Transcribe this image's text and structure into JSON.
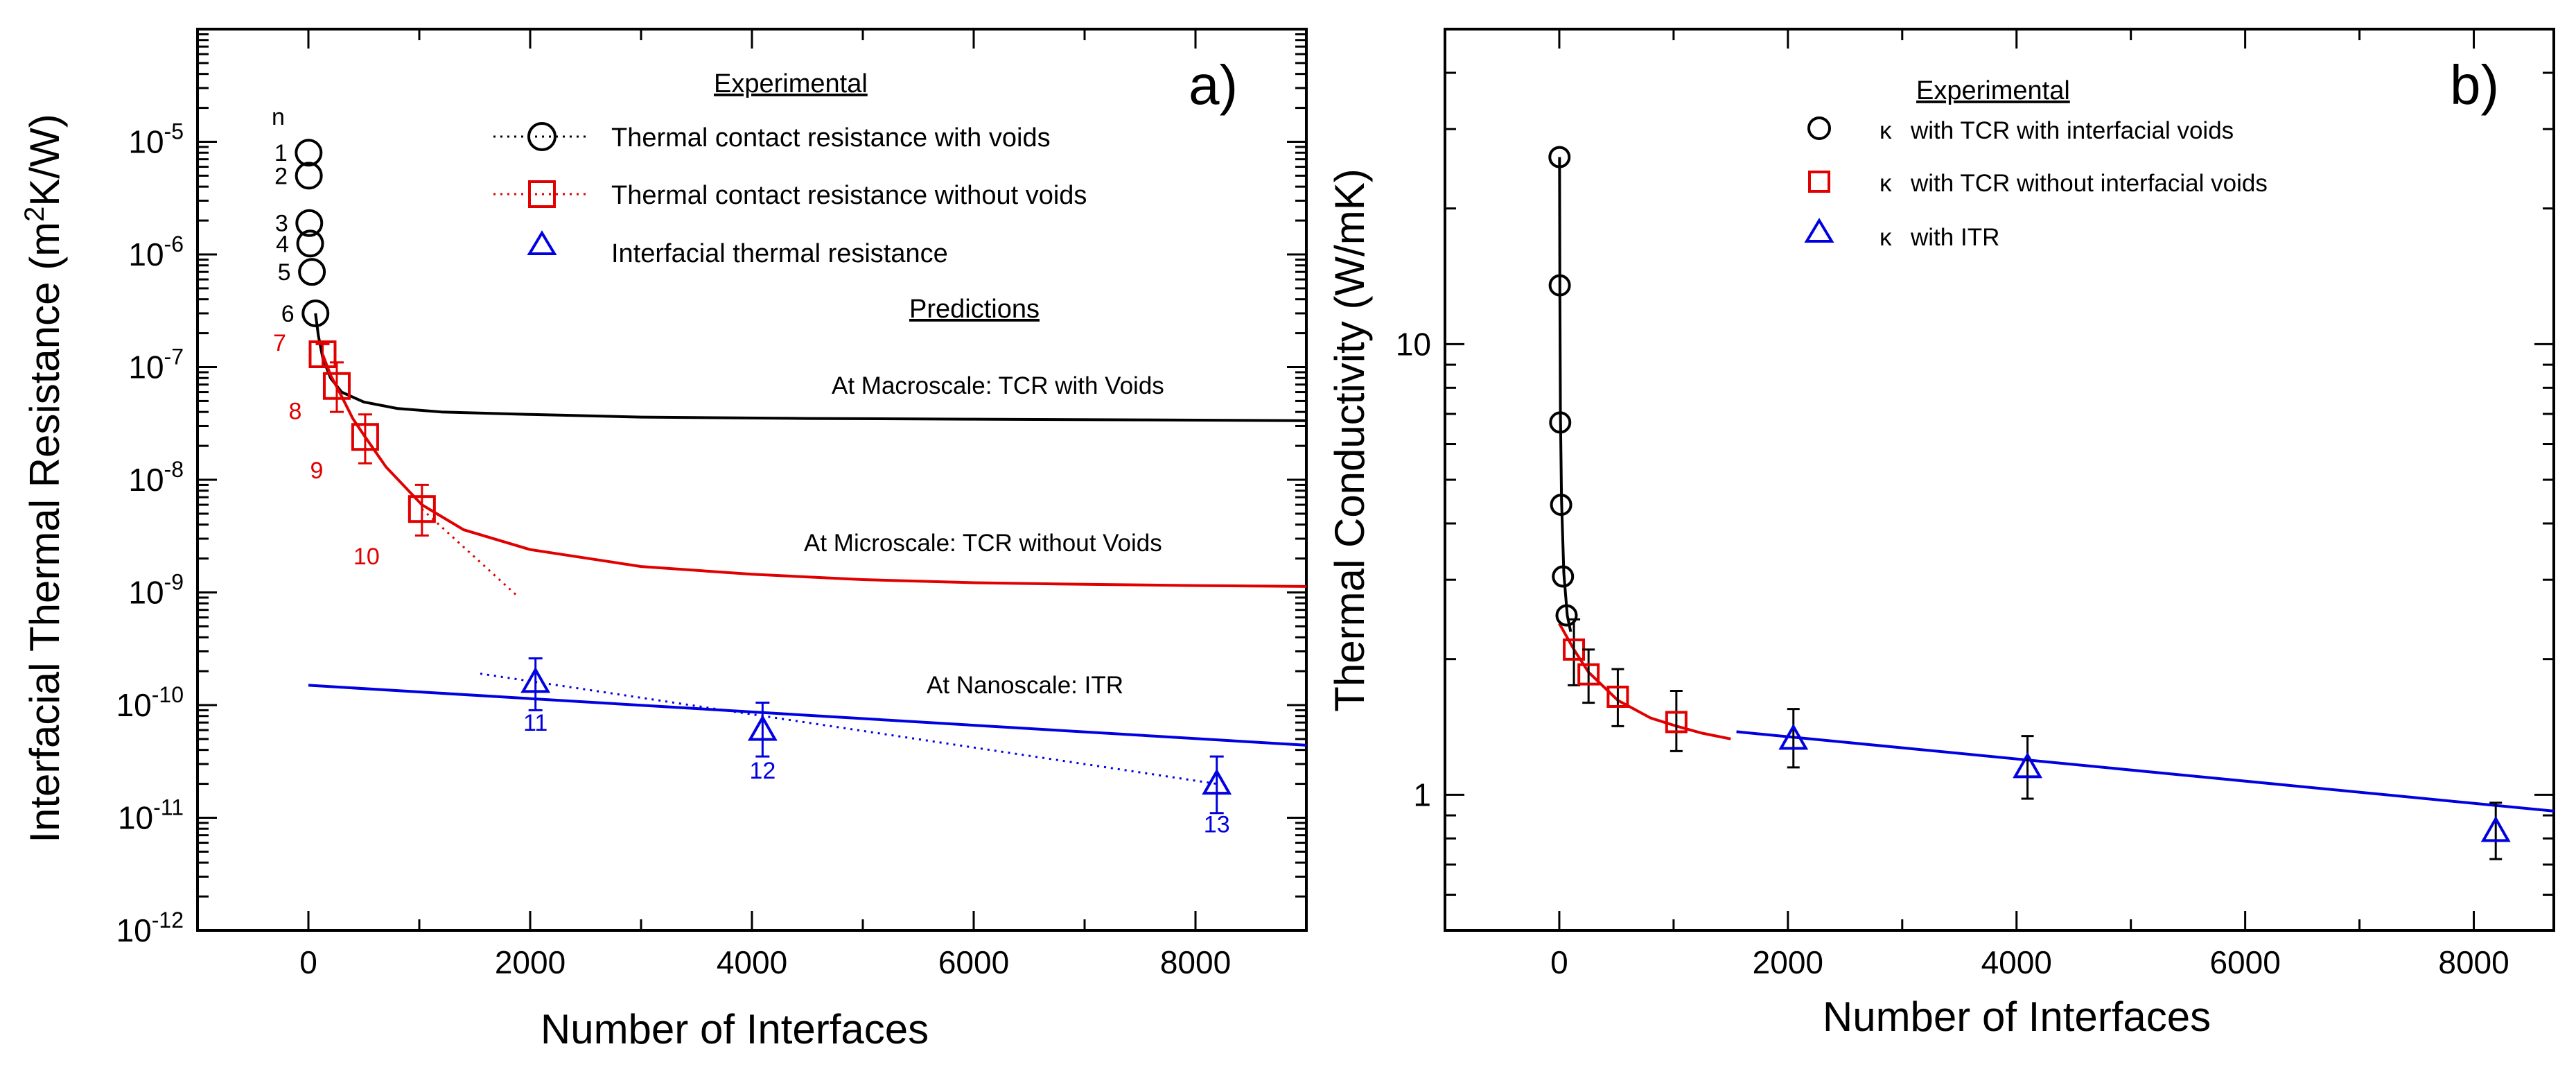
{
  "chart_data": [
    {
      "type": "scatter",
      "panel_label": "a)",
      "xlabel": "Number of Interfaces",
      "ylabel": "Interfacial Thermal Resistance (m",
      "ylabel_sup": "2",
      "ylabel_end": "K/W)",
      "xlim": [
        -1000,
        9000
      ],
      "ylim": [
        1e-12,
        0.0001
      ],
      "yscale": "log",
      "x_ticks": [
        0,
        2000,
        4000,
        6000,
        8000
      ],
      "x_tick_labels": [
        "0",
        "2000",
        "4000",
        "6000",
        "8000"
      ],
      "y_ticks": [
        1e-12,
        1e-11,
        1e-10,
        1e-09,
        1e-08,
        1e-07,
        1e-06,
        1e-05
      ],
      "y_tick_base": "10",
      "y_tick_exps": [
        "-12",
        "-11",
        "-10",
        "-9",
        "-8",
        "-7",
        "-6",
        "-5"
      ],
      "legend_title": "Experimental",
      "predictions_title": "Predictions",
      "n_label": "n",
      "series": [
        {
          "name": "Thermal contact resistance with voids",
          "marker": "circle",
          "color": "#000000",
          "points": [
            {
              "x": 2,
              "y": 8e-06,
              "label": "1"
            },
            {
              "x": 4,
              "y": 5e-06,
              "label": "2"
            },
            {
              "x": 8,
              "y": 1.9e-06,
              "label": "3"
            },
            {
              "x": 16,
              "y": 1.25e-06,
              "label": "4"
            },
            {
              "x": 32,
              "y": 7e-07,
              "label": "5"
            },
            {
              "x": 64,
              "y": 3e-07,
              "label": "6"
            }
          ]
        },
        {
          "name": "Thermal contact resistance without voids",
          "marker": "square",
          "color": "#e00000",
          "points": [
            {
              "x": 128,
              "y": 1.3e-07,
              "err": [
                1e-07,
                1.6e-07
              ],
              "label": "7"
            },
            {
              "x": 256,
              "y": 6.8e-08,
              "err": [
                4e-08,
                1.1e-07
              ],
              "label": "8"
            },
            {
              "x": 512,
              "y": 2.4e-08,
              "err": [
                1.4e-08,
                3.8e-08
              ],
              "label": "9"
            },
            {
              "x": 1024,
              "y": 5.5e-09,
              "err": [
                3.2e-09,
                9e-09
              ],
              "label": "10"
            }
          ]
        },
        {
          "name": "Interfacial thermal  resistance",
          "marker": "triangle",
          "color": "#0000e0",
          "points": [
            {
              "x": 2048,
              "y": 1.6e-10,
              "err": [
                9e-11,
                2.6e-10
              ],
              "label": "11"
            },
            {
              "x": 4096,
              "y": 6e-11,
              "err": [
                3.5e-11,
                1.05e-10
              ],
              "label": "12"
            },
            {
              "x": 8192,
              "y": 2e-11,
              "err": [
                1.1e-11,
                3.5e-11
              ],
              "label": "13"
            }
          ]
        }
      ],
      "fits": [
        {
          "name": "At Macroscale: TCR with Voids",
          "color": "#000000",
          "x": [
            64,
            90,
            130,
            200,
            300,
            500,
            800,
            1200,
            2000,
            3000,
            4500,
            6000,
            7500,
            9000
          ],
          "y": [
            3e-07,
            1.9e-07,
            1.2e-07,
            8e-08,
            6e-08,
            4.9e-08,
            4.3e-08,
            4e-08,
            3.8e-08,
            3.6e-08,
            3.5e-08,
            3.45e-08,
            3.4e-08,
            3.35e-08
          ]
        },
        {
          "name": "At Microscale: TCR without Voids",
          "color": "#e00000",
          "x": [
            128,
            200,
            300,
            400,
            512,
            700,
            1024,
            1400,
            2000,
            3000,
            4000,
            5000,
            6000,
            7000,
            8000,
            9000
          ],
          "y": [
            1.3e-07,
            8.5e-08,
            5.5e-08,
            3.5e-08,
            2.4e-08,
            1.3e-08,
            6e-09,
            3.6e-09,
            2.4e-09,
            1.7e-09,
            1.45e-09,
            1.3e-09,
            1.22e-09,
            1.18e-09,
            1.15e-09,
            1.13e-09
          ]
        },
        {
          "name": "At Nanoscale: ITR",
          "color": "#0000e0",
          "x": [
            0,
            9000
          ],
          "y": [
            1.5e-10,
            4.4e-11
          ]
        }
      ],
      "trendlines": [
        {
          "color": "#e00000",
          "x": [
            1024,
            1900
          ],
          "y": [
            5.5e-09,
            9e-10
          ]
        },
        {
          "color": "#0000e0",
          "x": [
            1550,
            8192
          ],
          "y": [
            1.9e-10,
            2e-11
          ]
        }
      ]
    },
    {
      "type": "scatter",
      "panel_label": "b)",
      "xlabel": "Number of Interfaces",
      "ylabel": "Thermal Conductivity (W/mK)",
      "xlim": [
        -1000,
        8700
      ],
      "ylim": [
        0.5,
        50
      ],
      "yscale": "log",
      "x_ticks": [
        0,
        2000,
        4000,
        6000,
        8000
      ],
      "x_tick_labels": [
        "0",
        "2000",
        "4000",
        "6000",
        "8000"
      ],
      "y_tick_labels": [
        {
          "value": 1,
          "label": "1"
        },
        {
          "value": 10,
          "label": "10"
        }
      ],
      "legend_title": "Experimental",
      "series": [
        {
          "name": "κ with TCR with interfacial voids",
          "symbol": "κ",
          "label": "with TCR with interfacial voids",
          "marker": "circle",
          "color": "#000000",
          "points": [
            {
              "x": 2,
              "y": 26
            },
            {
              "x": 4,
              "y": 13.5
            },
            {
              "x": 8,
              "y": 6.7
            },
            {
              "x": 16,
              "y": 4.4
            },
            {
              "x": 32,
              "y": 3.05
            },
            {
              "x": 64,
              "y": 2.5
            }
          ]
        },
        {
          "name": "κ with TCR without interfacial voids",
          "symbol": "κ",
          "label": "with TCR without interfacial voids",
          "marker": "square",
          "color": "#e00000",
          "points": [
            {
              "x": 128,
              "y": 2.1,
              "err": [
                1.75,
                2.45
              ]
            },
            {
              "x": 256,
              "y": 1.85,
              "err": [
                1.6,
                2.1
              ]
            },
            {
              "x": 512,
              "y": 1.65,
              "err": [
                1.42,
                1.9
              ]
            },
            {
              "x": 1024,
              "y": 1.45,
              "err": [
                1.25,
                1.7
              ]
            }
          ]
        },
        {
          "name": "κ with ITR",
          "symbol": "κ",
          "label": "with ITR",
          "marker": "triangle",
          "color": "#0000e0",
          "points": [
            {
              "x": 2048,
              "y": 1.33,
              "err": [
                1.15,
                1.55
              ]
            },
            {
              "x": 4096,
              "y": 1.15,
              "err": [
                0.98,
                1.35
              ]
            },
            {
              "x": 8192,
              "y": 0.83,
              "err": [
                0.72,
                0.96
              ]
            }
          ]
        }
      ],
      "fits": [
        {
          "color": "#000000",
          "x": [
            2,
            5,
            10,
            20,
            40,
            70,
            100
          ],
          "y": [
            26,
            13,
            7,
            4.5,
            3.1,
            2.5,
            2.3
          ]
        },
        {
          "color": "#e00000",
          "x": [
            0,
            128,
            256,
            512,
            800,
            1024,
            1250,
            1500
          ],
          "y": [
            2.4,
            2.1,
            1.87,
            1.62,
            1.48,
            1.42,
            1.37,
            1.33
          ]
        },
        {
          "color": "#0000e0",
          "x": [
            1550,
            8700
          ],
          "y": [
            1.38,
            0.92
          ]
        }
      ]
    }
  ]
}
